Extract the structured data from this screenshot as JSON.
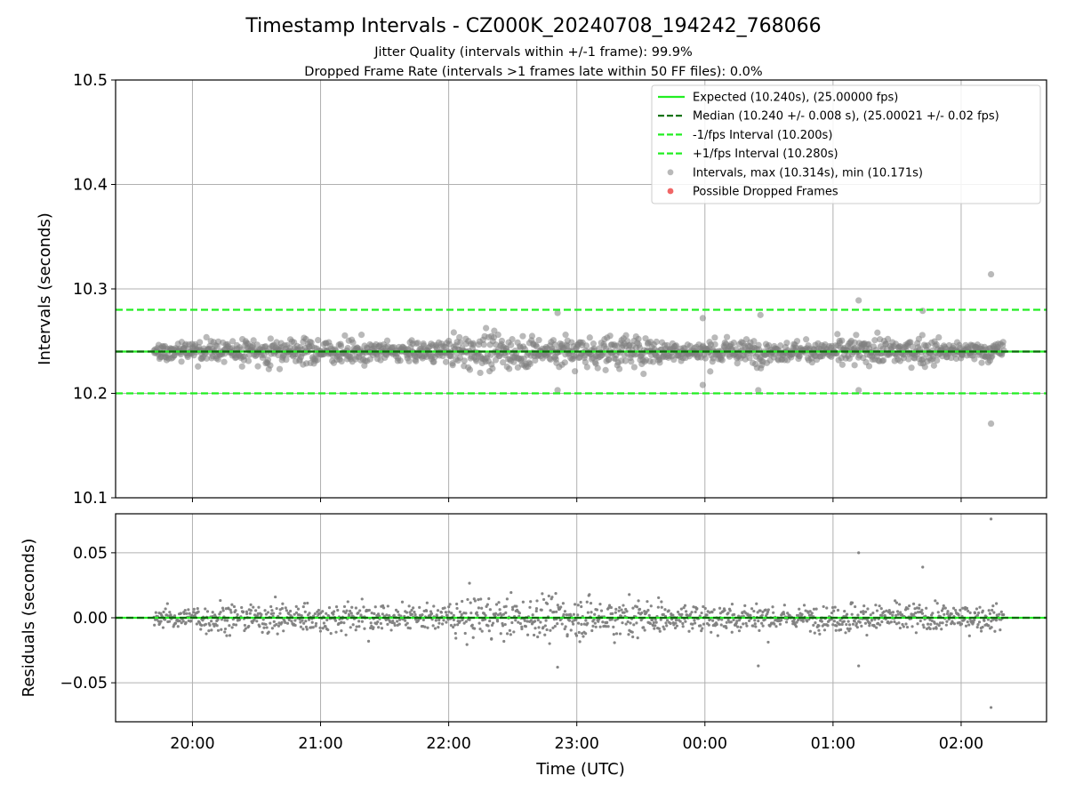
{
  "figure": {
    "title": "Timestamp Intervals - CZ000K_20240708_194242_768066",
    "subtitle_1": "Jitter Quality (intervals within +/-1 frame): 99.9%",
    "subtitle_2": "Dropped Frame Rate (intervals >1 frames late within 50 FF files): 0.0%"
  },
  "colors": {
    "expected": "#22ee22",
    "median": "#0a6b0a",
    "bounds": "#22ee22",
    "points": "#808080",
    "dropped": "#ee5555",
    "grid": "#b0b0b0",
    "axes": "#000000"
  },
  "chart_data": [
    {
      "type": "scatter",
      "id": "intervals",
      "ylabel": "Intervals (seconds)",
      "ylim": [
        10.1,
        10.5
      ],
      "yticks": [
        10.1,
        10.2,
        10.3,
        10.4,
        10.5
      ],
      "ytick_labels": [
        "10.1",
        "10.2",
        "10.3",
        "10.4",
        "10.5"
      ],
      "grid": true,
      "legend_position": "upper-right",
      "hlines": [
        {
          "y": 10.24,
          "label": "Expected (10.240s), (25.00000 fps)",
          "style": "solid",
          "color_key": "expected"
        },
        {
          "y": 10.24,
          "label": "Median (10.240 +/- 0.008 s), (25.00021 +/- 0.02 fps)",
          "style": "dashed",
          "color_key": "median"
        },
        {
          "y": 10.2,
          "label": "-1/fps Interval (10.200s)",
          "style": "dashed",
          "color_key": "bounds"
        },
        {
          "y": 10.28,
          "label": "+1/fps Interval (10.280s)",
          "style": "dashed",
          "color_key": "bounds"
        }
      ],
      "series": [
        {
          "name": "Intervals, max (10.314s), min (10.171s)",
          "marker": "circle",
          "color_key": "points",
          "summary": {
            "start": "19:42",
            "end": "02:20",
            "center": 10.24,
            "max": 10.314,
            "min": 10.171,
            "median": 10.24,
            "spread": 0.008
          },
          "outliers": [
            {
              "x": "02:14",
              "y": 10.314
            },
            {
              "x": "02:14",
              "y": 10.171
            },
            {
              "x": "01:12",
              "y": 10.289
            },
            {
              "x": "01:42",
              "y": 10.279
            },
            {
              "x": "22:51",
              "y": 10.277
            },
            {
              "x": "23:59",
              "y": 10.272
            },
            {
              "x": "00:26",
              "y": 10.275
            },
            {
              "x": "22:51",
              "y": 10.203
            },
            {
              "x": "00:25",
              "y": 10.203
            },
            {
              "x": "01:12",
              "y": 10.203
            },
            {
              "x": "23:59",
              "y": 10.208
            }
          ]
        },
        {
          "name": "Possible Dropped Frames",
          "marker": "circle",
          "color_key": "dropped",
          "points": []
        }
      ]
    },
    {
      "type": "scatter",
      "id": "residuals",
      "xlabel": "Time (UTC)",
      "ylabel": "Residuals (seconds)",
      "ylim": [
        -0.08,
        0.08
      ],
      "yticks": [
        -0.05,
        0.0,
        0.05
      ],
      "ytick_labels": [
        "−0.05",
        "0.00",
        "0.05"
      ],
      "x_range": [
        "19:24",
        "02:40"
      ],
      "xticks": [
        "20:00",
        "21:00",
        "22:00",
        "23:00",
        "00:00",
        "01:00",
        "02:00"
      ],
      "grid": true,
      "hlines": [
        {
          "y": 0.0,
          "style": "solid",
          "color_key": "expected"
        },
        {
          "y": 0.0,
          "style": "dashed",
          "color_key": "median"
        }
      ],
      "series": [
        {
          "name": "Residuals",
          "marker": "dot",
          "color_key": "points",
          "summary": {
            "start": "19:42",
            "end": "02:20",
            "center": 0.0,
            "max": 0.076,
            "min": -0.069
          },
          "outliers": [
            {
              "x": "02:14",
              "y": 0.076
            },
            {
              "x": "02:14",
              "y": -0.069
            },
            {
              "x": "01:12",
              "y": 0.05
            },
            {
              "x": "01:42",
              "y": 0.039
            },
            {
              "x": "22:51",
              "y": -0.038
            },
            {
              "x": "00:25",
              "y": -0.037
            },
            {
              "x": "01:12",
              "y": -0.037
            }
          ]
        }
      ]
    }
  ]
}
